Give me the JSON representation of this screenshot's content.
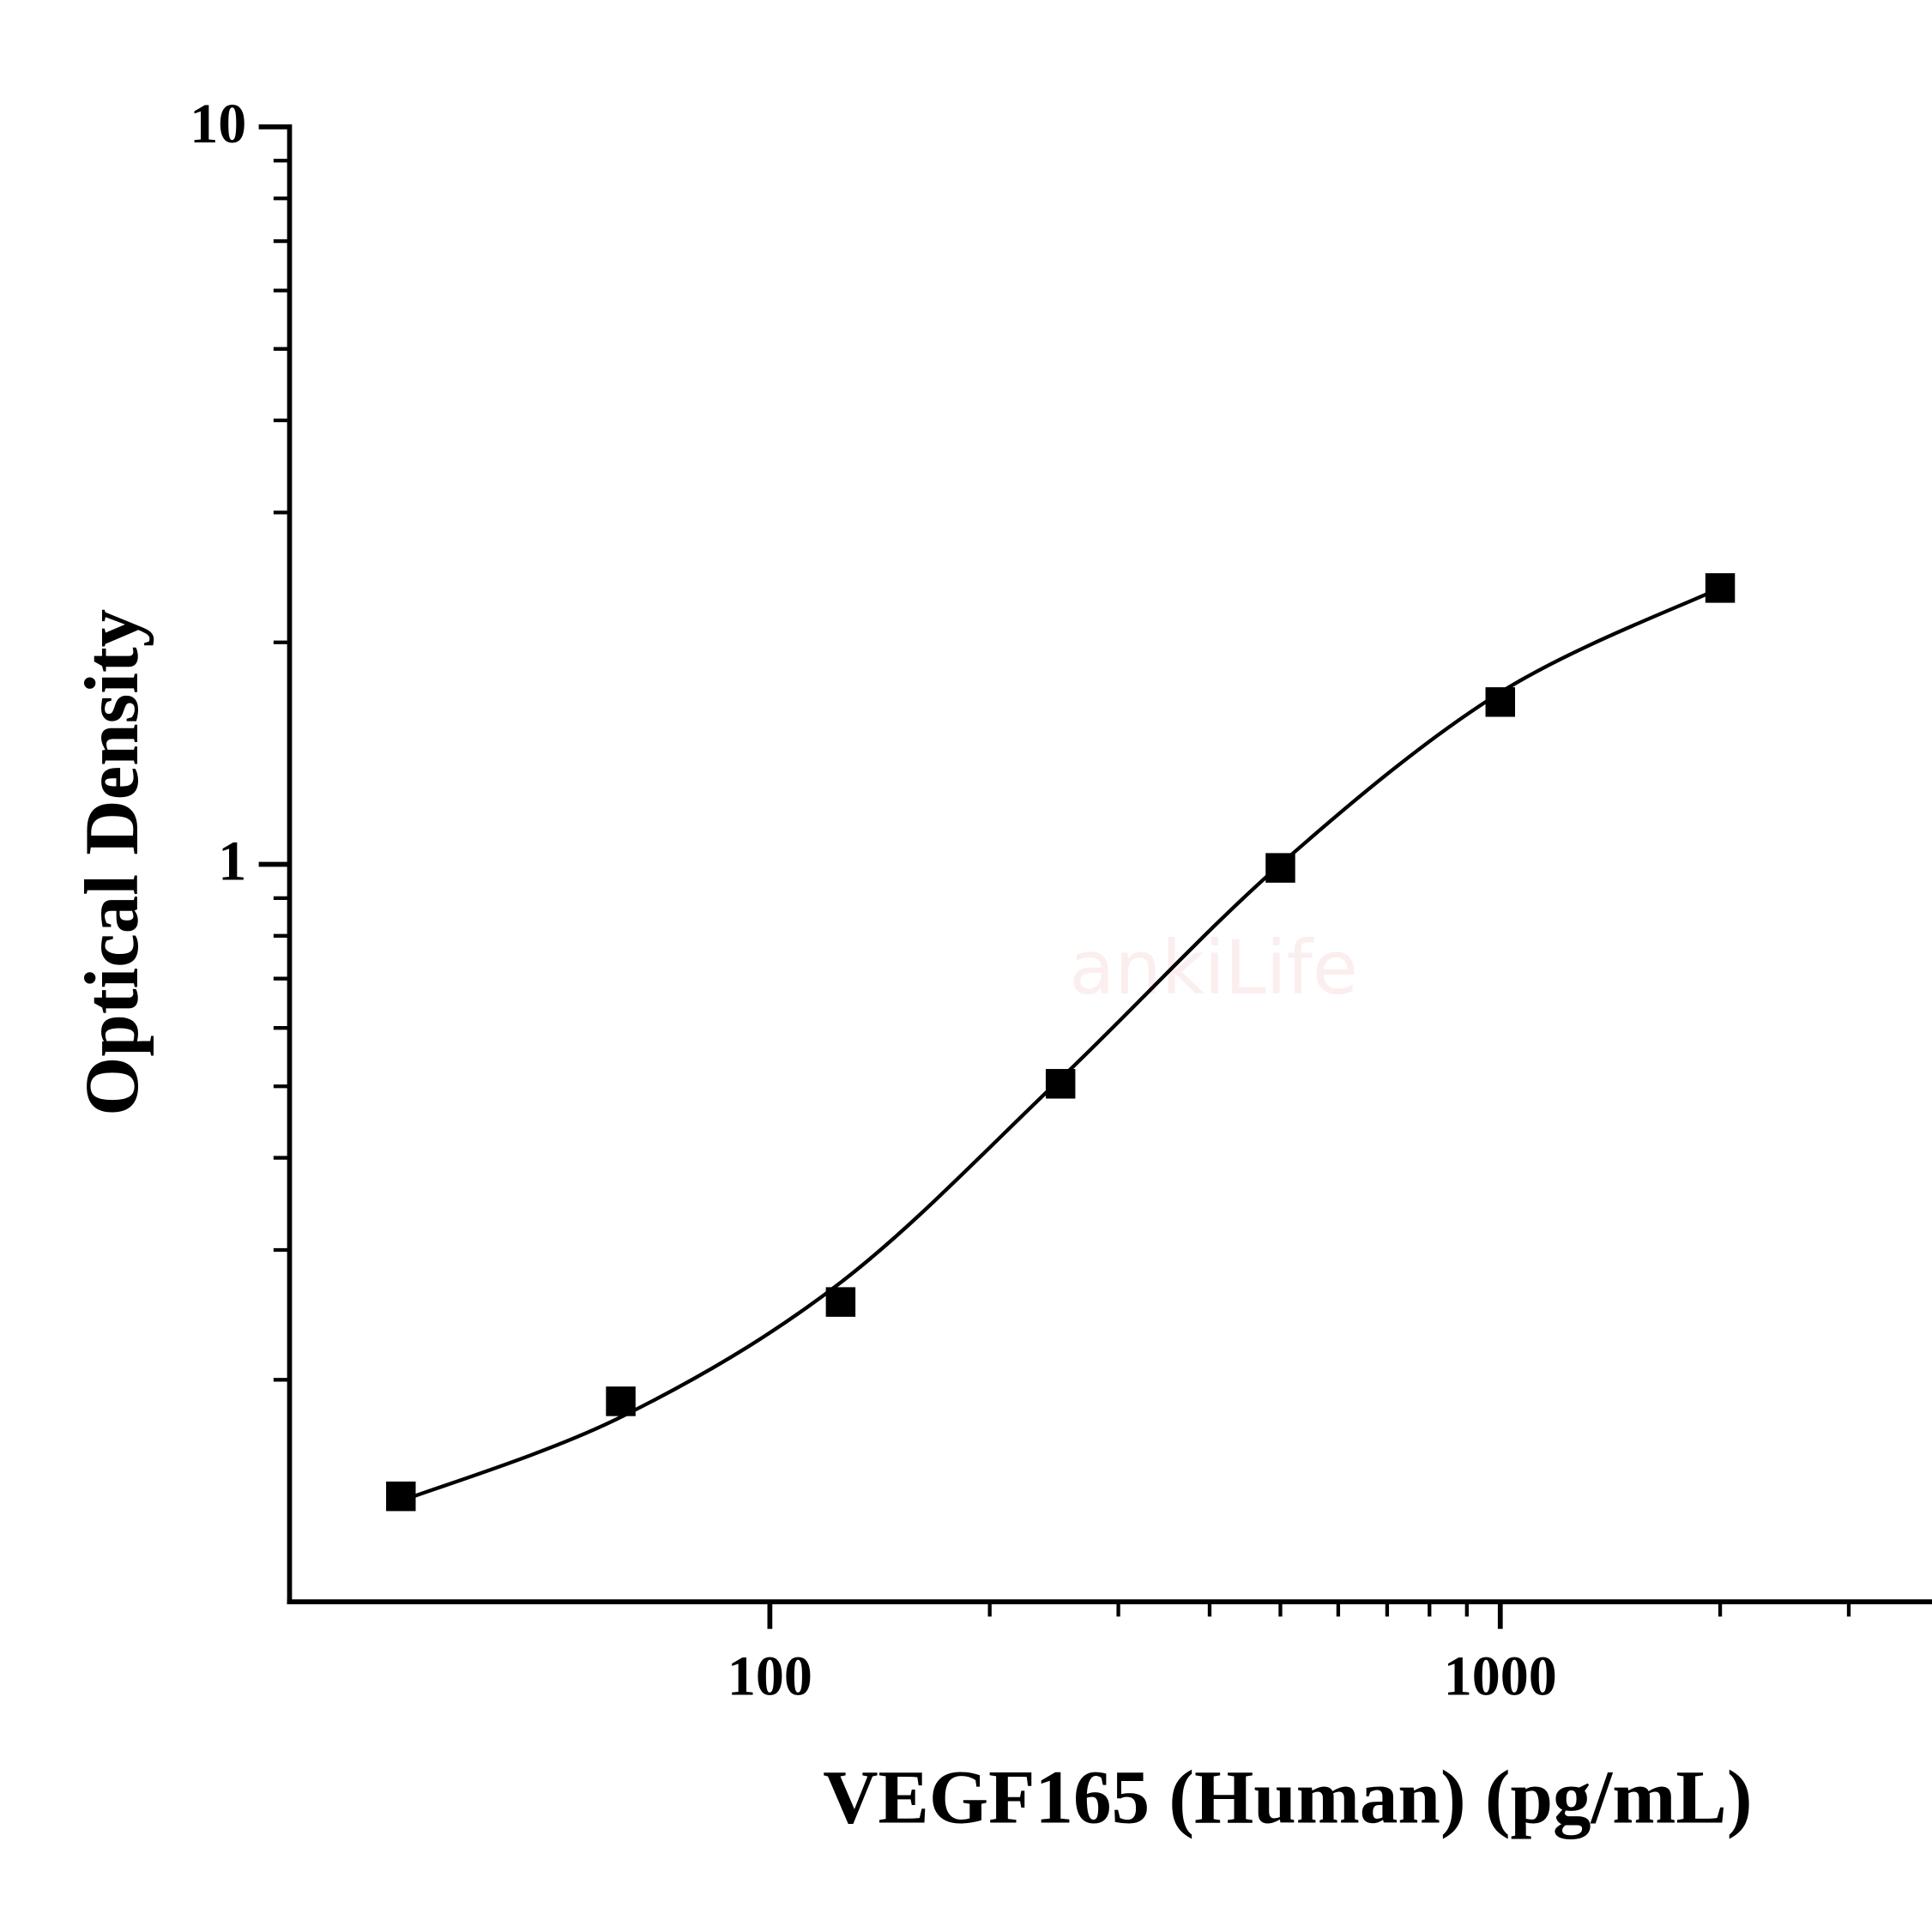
{
  "chart_data": {
    "type": "scatter",
    "x_label": "VEGF165 (Human) (pg/mL)",
    "y_label": "Optical Density",
    "watermark": "ankiLife",
    "x_scale": "log",
    "y_scale": "log",
    "xlim": [
      22,
      3900
    ],
    "ylim": [
      0.1,
      10
    ],
    "xticks": [
      100,
      1000
    ],
    "yticks": [
      1,
      10
    ],
    "xminorticks": [
      200,
      300,
      400,
      500,
      600,
      700,
      800,
      900,
      2000,
      3000
    ],
    "yminorticks": [
      0.2,
      0.3,
      0.4,
      0.5,
      0.6,
      0.7,
      0.8,
      0.9,
      2,
      3,
      4,
      5,
      6,
      7,
      8,
      9
    ],
    "series": [
      {
        "kind": "points",
        "color": "#000000",
        "marker": "square",
        "x": [
          31.25,
          62.5,
          125,
          250,
          500,
          1000,
          2000
        ],
        "values": [
          0.139,
          0.187,
          0.255,
          0.504,
          0.989,
          1.66,
          2.37
        ]
      },
      {
        "kind": "fit",
        "color": "#000000",
        "x": [
          31.25,
          62.5,
          125,
          250,
          500,
          1000,
          2000
        ],
        "values": [
          0.137,
          0.178,
          0.271,
          0.512,
          1.0,
          1.71,
          2.37
        ]
      }
    ]
  }
}
